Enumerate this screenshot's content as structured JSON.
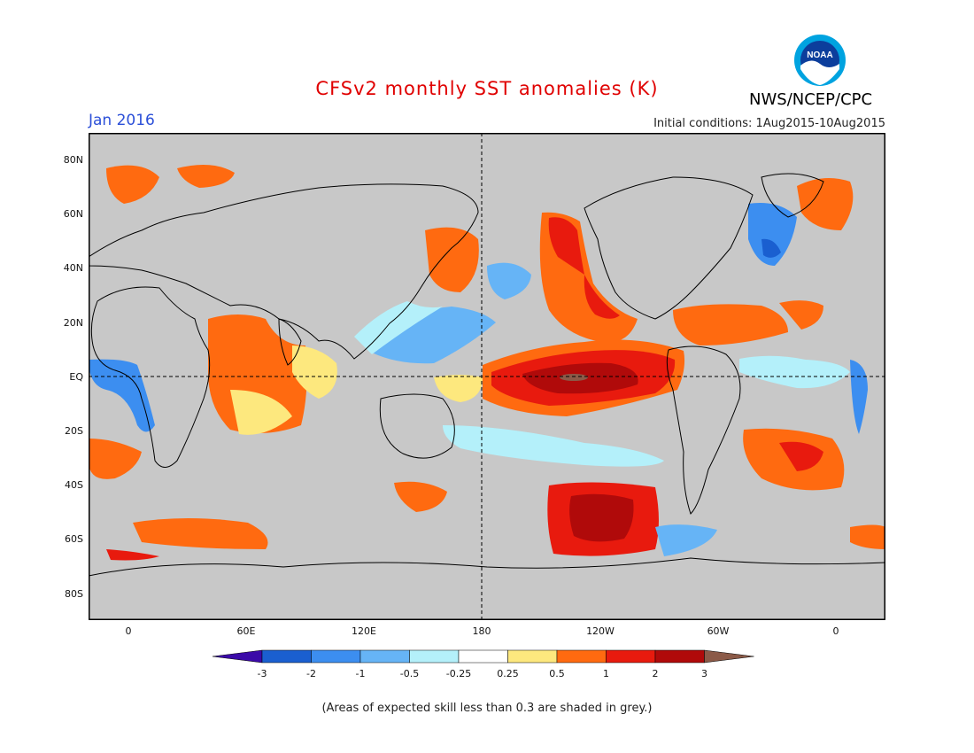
{
  "header": {
    "title": "CFSv2 monthly SST anomalies (K)",
    "month": "Jan 2016",
    "initial_conditions": "Initial conditions: 1Aug2015-10Aug2015",
    "agency": "NWS/NCEP/CPC",
    "logo_text": "NOAA"
  },
  "map": {
    "lat_labels": [
      "80N",
      "60N",
      "40N",
      "20N",
      "EQ",
      "20S",
      "40S",
      "60S",
      "80S"
    ],
    "lon_labels": [
      "0",
      "60E",
      "120E",
      "180",
      "120W",
      "60W",
      "0"
    ],
    "background_color": "#c8c8c8",
    "reference_lines": [
      "equator",
      "dateline"
    ]
  },
  "colorbar": {
    "tick_labels": [
      "-3",
      "-2",
      "-1",
      "-0.5",
      "-0.25",
      "0.25",
      "0.5",
      "1",
      "2",
      "3"
    ],
    "colors": [
      "#3b0aa8",
      "#1a5fd0",
      "#3c8ef0",
      "#66b4f6",
      "#b4f0fa",
      "#ffffff",
      "#fde87e",
      "#ff6a10",
      "#e81a0e",
      "#b00a0a",
      "#8b5a48"
    ]
  },
  "note": "(Areas of expected skill less than 0.3 are shaded in grey.)"
}
